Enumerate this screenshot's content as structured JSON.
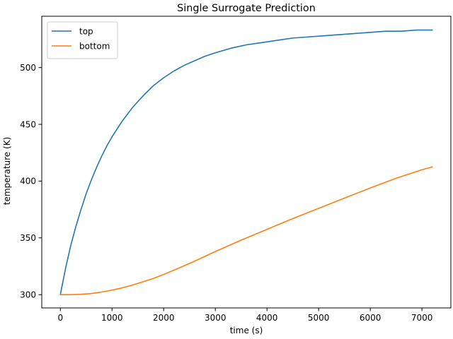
{
  "chart_data": {
    "type": "line",
    "title": "Single Surrogate Prediction",
    "xlabel": "time (s)",
    "ylabel": "temperature (K)",
    "xlim": [
      -360,
      7560
    ],
    "ylim": [
      288.3,
      545.2
    ],
    "xticks": [
      0,
      1000,
      2000,
      3000,
      4000,
      5000,
      6000,
      7000
    ],
    "yticks": [
      300,
      350,
      400,
      450,
      500
    ],
    "grid": false,
    "legend_position": "top-left",
    "series": [
      {
        "name": "top",
        "color": "#1f77b4",
        "x": [
          0,
          100,
          200,
          300,
          400,
          500,
          600,
          700,
          800,
          900,
          1000,
          1200,
          1400,
          1600,
          1800,
          2000,
          2200,
          2400,
          2600,
          2800,
          3000,
          3300,
          3600,
          3900,
          4200,
          4500,
          4800,
          5100,
          5400,
          5700,
          6000,
          6300,
          6600,
          6900,
          7200
        ],
        "y": [
          300,
          323,
          343,
          360,
          375,
          389,
          401,
          412,
          422,
          431,
          439,
          453,
          465,
          475,
          484,
          491,
          497,
          502,
          506,
          510,
          513,
          517,
          520,
          522,
          524,
          526,
          527,
          528,
          529,
          530,
          531,
          532,
          532,
          533,
          533
        ]
      },
      {
        "name": "bottom",
        "color": "#ff7f0e",
        "x": [
          0,
          200,
          400,
          600,
          800,
          1000,
          1200,
          1400,
          1600,
          1800,
          2000,
          2300,
          2600,
          3000,
          3500,
          4000,
          4500,
          5000,
          5500,
          6000,
          6500,
          7000,
          7200
        ],
        "y": [
          300,
          300,
          300.3,
          301,
          302.3,
          304,
          306,
          308.5,
          311.3,
          314.3,
          317.8,
          323.5,
          329.5,
          338,
          348,
          357.5,
          367,
          376,
          385,
          394,
          402.5,
          410,
          412.5
        ]
      }
    ]
  }
}
